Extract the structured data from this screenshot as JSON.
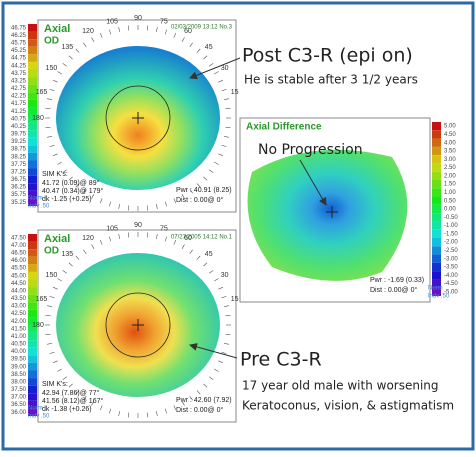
{
  "annotations": {
    "post_title": "Post C3-R (epi on)",
    "post_note": "He is stable after 3 1/2 years",
    "diff_note": "No Progression",
    "pre_title": "Pre C3-R",
    "pre_note_1": "17 year old male with worsening",
    "pre_note_2": "Keratoconus, vision, & astigmatism"
  },
  "panels": [
    {
      "title": "Axial",
      "eye": "OD",
      "timestamp": "02/03/2009 13:12 No.3",
      "sim_k_label": "SIM K's:",
      "sim_k": [
        "41.72 (0.09)@ 89°",
        "40.47 (0.34)@ 179°",
        "dk -1.25 (+0.25)"
      ],
      "pwr": "Pwr : 40.91 (8.25)",
      "dist": "Dist : 0.00@ 0°",
      "norm": "Norm",
      "indv": "Indv .50",
      "angles": [
        90,
        105,
        75,
        120,
        60,
        135,
        45,
        150,
        30,
        165,
        15,
        180
      ],
      "scale": [
        "46.75",
        "46.25",
        "45.75",
        "45.25",
        "44.75",
        "44.25",
        "43.75",
        "43.25",
        "42.75",
        "42.25",
        "41.75",
        "41.25",
        "40.75",
        "40.25",
        "39.75",
        "39.25",
        "38.75",
        "38.25",
        "37.75",
        "37.25",
        "36.75",
        "36.25",
        "35.75",
        "35.25"
      ]
    },
    {
      "title": "Axial",
      "eye": "OD",
      "timestamp": "07/27/2005 14:12 No.1",
      "sim_k_label": "SIM K's:",
      "sim_k": [
        "42.94 (7.86)@ 77°",
        "41.56 (8.12)@ 167°",
        "dk -1.38 (+0.26)"
      ],
      "pwr": "Pwr : 42.60 (7.92)",
      "dist": "Dist : 0.00@ 0°",
      "norm": "Norm",
      "indv": "Indv .50",
      "angles": [
        90,
        105,
        75,
        120,
        60,
        135,
        45,
        150,
        30,
        165,
        15,
        180
      ],
      "scale": [
        "47.50",
        "47.00",
        "46.50",
        "46.00",
        "45.50",
        "45.00",
        "44.50",
        "44.00",
        "43.50",
        "43.00",
        "42.50",
        "42.00",
        "41.50",
        "41.00",
        "40.50",
        "40.00",
        "39.50",
        "39.00",
        "38.50",
        "38.00",
        "37.50",
        "37.00",
        "36.50",
        "36.00"
      ]
    },
    {
      "title": "Axial Difference",
      "pwr": "Pwr : -1.69 (0.33)",
      "dist": "Dist : 0.00@ 0°",
      "norm": "Norm",
      "indv": "Indv .50",
      "scale": [
        "5.00",
        "4.50",
        "4.00",
        "3.50",
        "3.00",
        "2.50",
        "2.00",
        "1.50",
        "1.00",
        "0.50",
        "0.00",
        "-0.50",
        "-1.00",
        "-1.50",
        "-2.00",
        "-2.50",
        "-3.00",
        "-3.50",
        "-4.00",
        "-4.50",
        "-5.00"
      ]
    }
  ]
}
